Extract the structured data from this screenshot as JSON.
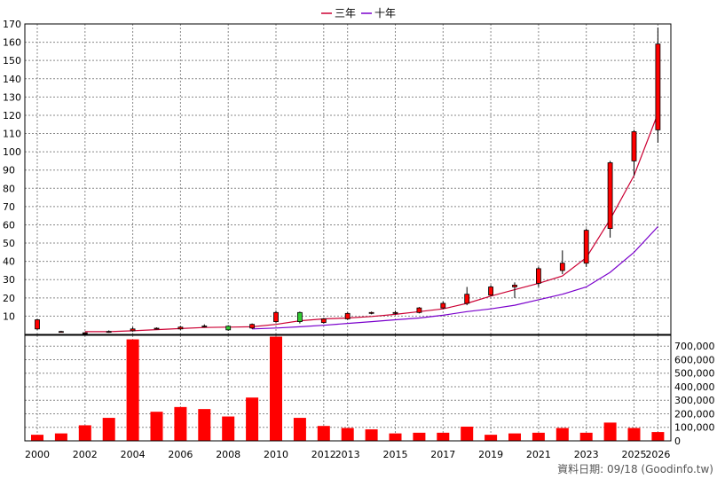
{
  "chart_data": {
    "type": "candlestick+bar",
    "legend": [
      {
        "name": "三年",
        "color": "#cc0033"
      },
      {
        "name": "十年",
        "color": "#7a00cc"
      }
    ],
    "price_ylim": [
      0,
      170
    ],
    "price_ticks": [
      10,
      20,
      30,
      40,
      50,
      60,
      70,
      80,
      90,
      100,
      110,
      120,
      130,
      140,
      150,
      160,
      170
    ],
    "volume_ylim": [
      0,
      780000
    ],
    "volume_ticks": [
      0,
      100000,
      200000,
      300000,
      400000,
      500000,
      600000,
      700000
    ],
    "volume_tick_labels": [
      "0",
      "100,000",
      "200,000",
      "300,000",
      "400,000",
      "500,000",
      "600,000",
      "700,000"
    ],
    "x_tick_labels": [
      "2000",
      "2002",
      "2004",
      "2006",
      "2008",
      "2010",
      "2012",
      "2013",
      "2015",
      "2017",
      "2019",
      "2021",
      "2023",
      "2025",
      "2026"
    ],
    "x_tick_periods": [
      0,
      2,
      4,
      6,
      8,
      10,
      12,
      13,
      15,
      17,
      19,
      21,
      23,
      25,
      26
    ],
    "candles": [
      {
        "open": 3.0,
        "close": 8.0,
        "high": 8.5,
        "low": 2.5
      },
      {
        "open": 1.2,
        "close": 1.6,
        "high": 2.0,
        "low": 1.0
      },
      {
        "open": 0.6,
        "close": 0.9,
        "high": 1.2,
        "low": 0.4
      },
      {
        "open": 1.2,
        "close": 1.6,
        "high": 2.2,
        "low": 0.9
      },
      {
        "open": 2.0,
        "close": 3.0,
        "high": 4.0,
        "low": 1.5
      },
      {
        "open": 3.0,
        "close": 3.4,
        "high": 3.8,
        "low": 2.8
      },
      {
        "open": 3.0,
        "close": 4.0,
        "high": 4.5,
        "low": 2.5
      },
      {
        "open": 4.2,
        "close": 4.6,
        "high": 5.5,
        "low": 3.8
      },
      {
        "open": 4.5,
        "close": 2.5,
        "high": 5.0,
        "low": 2.0
      },
      {
        "open": 3.5,
        "close": 5.5,
        "high": 6.0,
        "low": 3.0
      },
      {
        "open": 7.0,
        "close": 12.0,
        "high": 13.0,
        "low": 6.5
      },
      {
        "open": 12.0,
        "close": 7.0,
        "high": 12.5,
        "low": 6.0
      },
      {
        "open": 6.5,
        "close": 8.5,
        "high": 9.0,
        "low": 6.0
      },
      {
        "open": 8.5,
        "close": 11.5,
        "high": 12.0,
        "low": 8.0
      },
      {
        "open": 11.5,
        "close": 12.0,
        "high": 12.5,
        "low": 11.0
      },
      {
        "open": 11.5,
        "close": 12.0,
        "high": 13.0,
        "low": 11.0
      },
      {
        "open": 12.0,
        "close": 14.5,
        "high": 15.0,
        "low": 11.5
      },
      {
        "open": 14.5,
        "close": 17.0,
        "high": 18.0,
        "low": 14.0
      },
      {
        "open": 17.0,
        "close": 22.0,
        "high": 26.0,
        "low": 16.0
      },
      {
        "open": 21.5,
        "close": 26.0,
        "high": 27.0,
        "low": 21.0
      },
      {
        "open": 26.0,
        "close": 27.0,
        "high": 28.5,
        "low": 20.0
      },
      {
        "open": 28.0,
        "close": 36.0,
        "high": 37.0,
        "low": 26.0
      },
      {
        "open": 35.0,
        "close": 39.0,
        "high": 46.0,
        "low": 33.0
      },
      {
        "open": 39.0,
        "close": 57.0,
        "high": 58.0,
        "low": 37.0
      },
      {
        "open": 58.0,
        "close": 94.0,
        "high": 95.0,
        "low": 53.0
      },
      {
        "open": 95.0,
        "close": 111.0,
        "high": 112.0,
        "low": 87.0
      },
      {
        "open": 112.0,
        "close": 159.0,
        "high": 168.0,
        "low": 105.0
      }
    ],
    "ma3": [
      null,
      null,
      1.5,
      1.5,
      2.0,
      2.6,
      3.2,
      3.8,
      4.0,
      4.2,
      5.5,
      7.5,
      8.5,
      9.0,
      9.8,
      11.0,
      12.5,
      14.0,
      17.0,
      21.0,
      24.5,
      28.0,
      32.0,
      42.0,
      63.0,
      87.0,
      121.0
    ],
    "ma10": [
      null,
      null,
      null,
      null,
      null,
      null,
      null,
      null,
      null,
      3.0,
      3.5,
      4.2,
      5.0,
      6.0,
      7.0,
      8.0,
      9.0,
      10.5,
      12.5,
      14.0,
      16.0,
      19.0,
      22.0,
      26.0,
      34.0,
      45.0,
      59.0
    ],
    "volume": [
      45000,
      55000,
      115000,
      170000,
      750000,
      215000,
      250000,
      235000,
      180000,
      320000,
      770000,
      170000,
      110000,
      95000,
      85000,
      55000,
      60000,
      60000,
      105000,
      45000,
      55000,
      60000,
      95000,
      60000,
      135000,
      95000,
      65000
    ],
    "footer": "資料日期: 09/18  (Goodinfo.tw)"
  }
}
